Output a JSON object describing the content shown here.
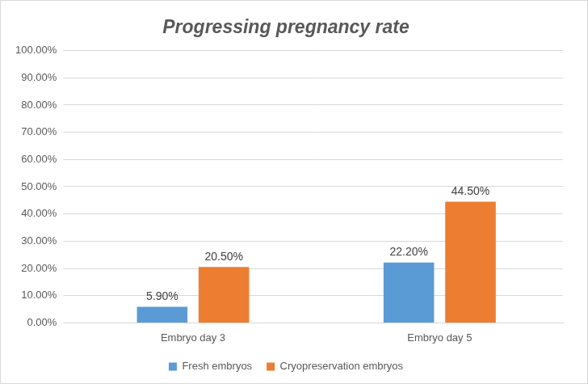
{
  "chart_data": {
    "type": "bar",
    "title": "Progressing pregnancy rate",
    "categories": [
      "Embryo day 3",
      "Embryo day 5"
    ],
    "series": [
      {
        "name": "Fresh embryos",
        "color": "#5b9bd5",
        "values": [
          5.9,
          22.2
        ],
        "value_labels": [
          "5.90%",
          "22.20%"
        ]
      },
      {
        "name": "Cryopreservation embryos",
        "color": "#ed7d31",
        "values": [
          20.5,
          44.5
        ],
        "value_labels": [
          "20.50%",
          "44.50%"
        ]
      }
    ],
    "ylim": [
      0,
      100
    ],
    "yticks": [
      {
        "value": 0,
        "label": "0.00%"
      },
      {
        "value": 10,
        "label": "10.00%"
      },
      {
        "value": 20,
        "label": "20.00%"
      },
      {
        "value": 30,
        "label": "30.00%"
      },
      {
        "value": 40,
        "label": "40.00%"
      },
      {
        "value": 50,
        "label": "50.00%"
      },
      {
        "value": 60,
        "label": "60.00%"
      },
      {
        "value": 70,
        "label": "70.00%"
      },
      {
        "value": 80,
        "label": "80.00%"
      },
      {
        "value": 90,
        "label": "90.00%"
      },
      {
        "value": 100,
        "label": "100.00%"
      }
    ],
    "grid": true,
    "legend": "bottom",
    "data_labels": true
  }
}
